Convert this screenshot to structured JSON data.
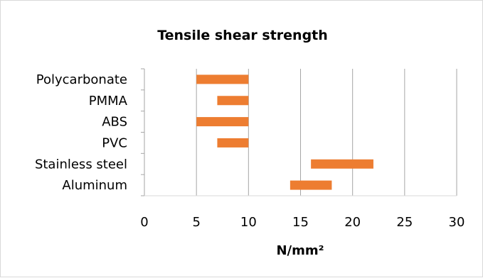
{
  "chart_data": {
    "type": "bar",
    "orientation": "horizontal",
    "style": "floating-range",
    "title": "Tensile shear strength",
    "xlabel": "N/mm²",
    "ylabel": "",
    "xlim": [
      0,
      30
    ],
    "x_ticks": [
      "0",
      "5",
      "10",
      "15",
      "20",
      "25",
      "30"
    ],
    "grid": "vertical-major",
    "legend": "none",
    "bar_color": "#ED7D31",
    "categories": [
      "Polycarbonate",
      "PMMA",
      "ABS",
      "PVC",
      "Stainless steel",
      "Aluminum"
    ],
    "ranges": [
      {
        "category": "Polycarbonate",
        "min": 5,
        "max": 10
      },
      {
        "category": "PMMA",
        "min": 7,
        "max": 10
      },
      {
        "category": "ABS",
        "min": 5,
        "max": 10
      },
      {
        "category": "PVC",
        "min": 7,
        "max": 10
      },
      {
        "category": "Stainless steel",
        "min": 16,
        "max": 22
      },
      {
        "category": "Aluminum",
        "min": 14,
        "max": 18
      }
    ]
  }
}
